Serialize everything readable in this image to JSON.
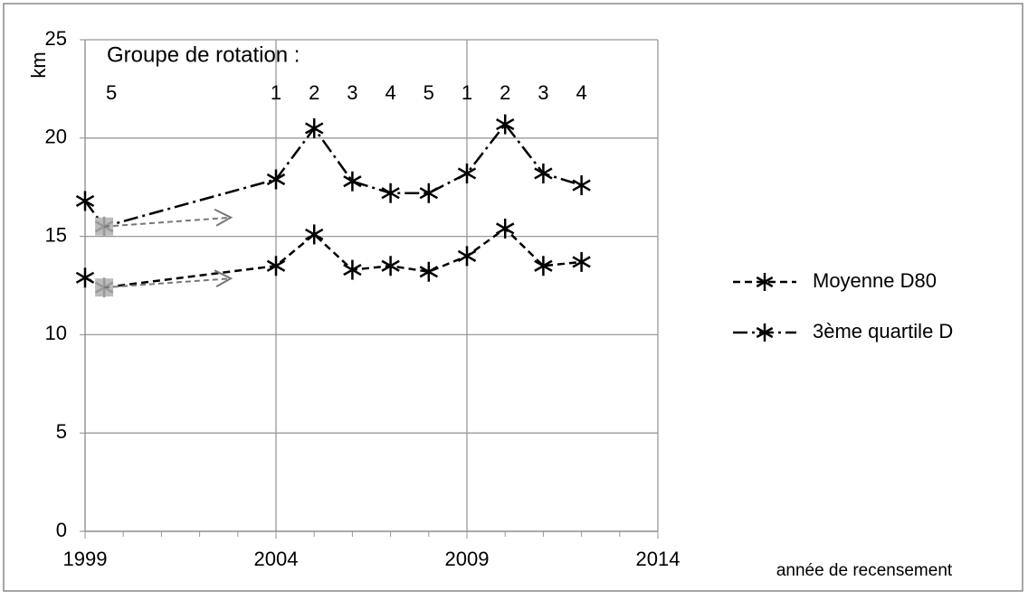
{
  "chart_data": {
    "type": "line",
    "y_label": "km",
    "x_label": "année de recensement",
    "annotation": {
      "title": "Groupe de rotation :",
      "labels": [
        "5",
        "1",
        "2",
        "3",
        "4",
        "5",
        "1",
        "2",
        "3",
        "4"
      ]
    },
    "x": [
      1999,
      1999.5,
      2004,
      2005,
      2006,
      2007,
      2008,
      2009,
      2010,
      2011,
      2012
    ],
    "series": [
      {
        "name": "Moyenne D80",
        "color": "#000000",
        "dash": "8,5",
        "values": [
          12.9,
          12.4,
          13.5,
          15.1,
          13.3,
          13.5,
          13.2,
          14.0,
          15.4,
          13.5,
          13.7
        ],
        "marker_colors": [
          "#000000",
          "#999999",
          "#000000",
          "#000000",
          "#000000",
          "#000000",
          "#000000",
          "#000000",
          "#000000",
          "#000000",
          "#000000"
        ]
      },
      {
        "name": "3ème quartile D",
        "color": "#000000",
        "dash": "16,5,3,5",
        "values": [
          16.8,
          15.5,
          17.9,
          20.5,
          17.8,
          17.2,
          17.2,
          18.2,
          20.7,
          18.2,
          17.6
        ],
        "marker_colors": [
          "#000000",
          "#999999",
          "#000000",
          "#000000",
          "#000000",
          "#000000",
          "#000000",
          "#000000",
          "#000000",
          "#000000",
          "#000000"
        ]
      }
    ],
    "xlim": [
      1999,
      2014
    ],
    "xticks": [
      1999,
      2004,
      2009,
      2014
    ],
    "ylim": [
      0,
      25
    ],
    "yticks": [
      0,
      5,
      10,
      15,
      20,
      25
    ],
    "grid": true,
    "legend": "right"
  }
}
